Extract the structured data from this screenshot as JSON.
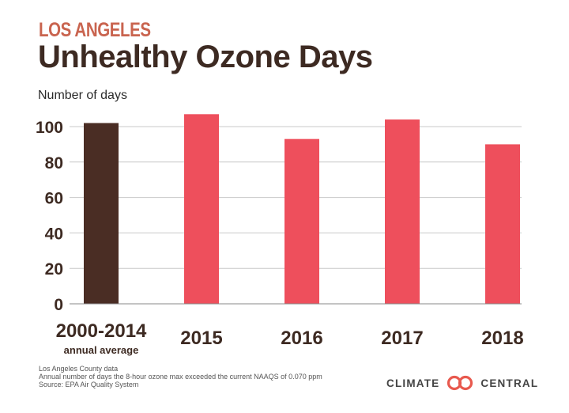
{
  "header": {
    "supertitle": "LOS ANGELES",
    "title": "Unhealthy Ozone Days"
  },
  "chart_data": {
    "type": "bar",
    "title": "Unhealthy Ozone Days",
    "subtitle": "LOS ANGELES",
    "ylabel": "Number of days",
    "xlabel": "",
    "ylim": [
      0,
      100
    ],
    "yticks": [
      0,
      20,
      40,
      60,
      80,
      100
    ],
    "grid": true,
    "categories": [
      "2000-2014",
      "2015",
      "2016",
      "2017",
      "2018"
    ],
    "category_sublabels": [
      "annual average",
      "",
      "",
      "",
      ""
    ],
    "values": [
      102,
      107,
      93,
      104,
      90
    ],
    "colors": [
      "#4a2d24",
      "#ee4f5c",
      "#ee4f5c",
      "#ee4f5c",
      "#ee4f5c"
    ]
  },
  "footnotes": [
    "Los Angeles County data",
    "Annual number of days the 8-hour ozone max exceeded the current NAAQS of 0.070 ppm",
    "Source: EPA Air Quality System"
  ],
  "logo": {
    "left_word": "CLIMATE",
    "right_word": "CENTRAL",
    "color": "#444444"
  }
}
